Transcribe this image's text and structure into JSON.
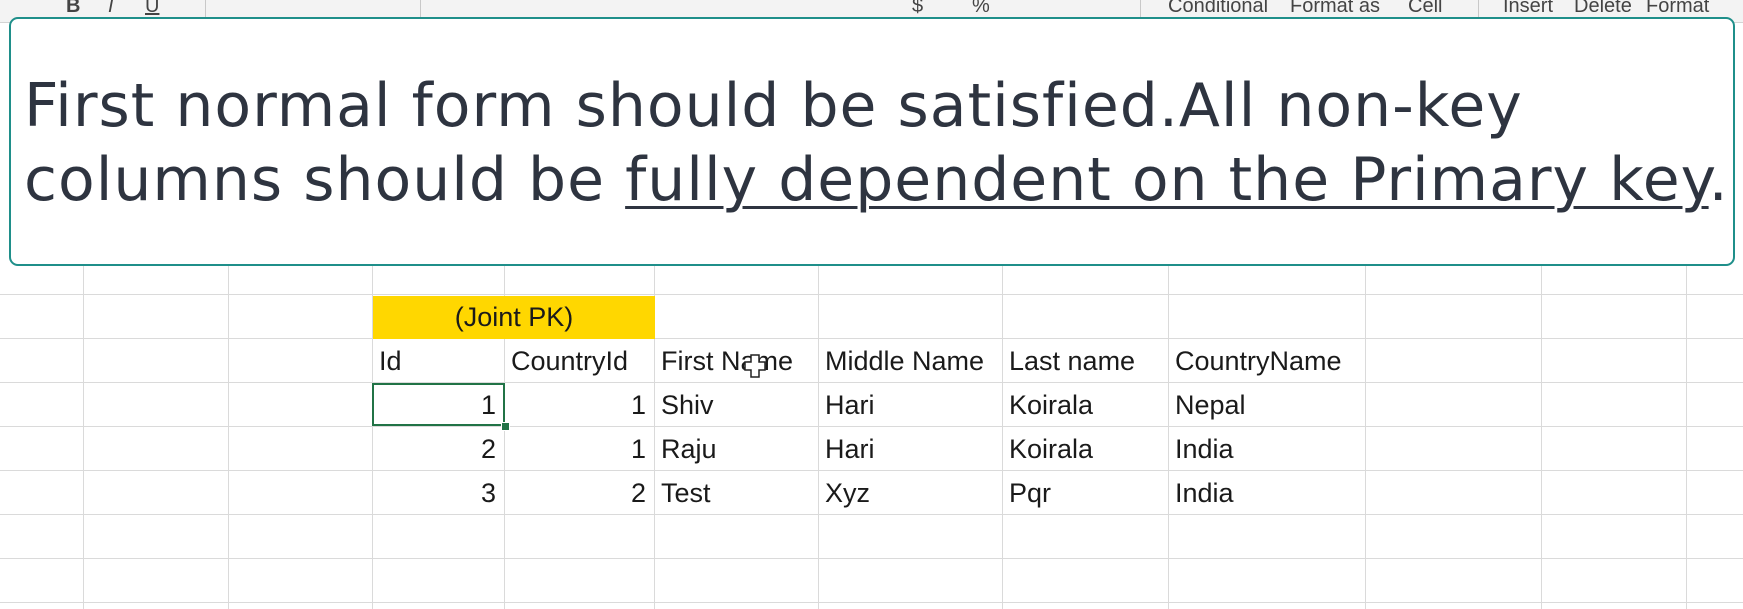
{
  "ribbon": {
    "items": [
      "B",
      "I",
      "U",
      "$",
      "%",
      "Conditional",
      "Format as",
      "Cell",
      "Insert",
      "Delete",
      "Format"
    ]
  },
  "banner": {
    "line1": "First normal form should be satisfied.All non-key",
    "line2_plain": "columns should be ",
    "line2_underlined": "fully dependent on the Primary key",
    "line2_end": "."
  },
  "sheet": {
    "joint_pk_label": "(Joint PK)",
    "headers": [
      "Id",
      "CountryId",
      "First Name",
      "Middle Name",
      "Last name",
      "CountryName"
    ],
    "rows": [
      {
        "id": "1",
        "country_id": "1",
        "first": "Shiv",
        "middle": "Hari",
        "last": "Koirala",
        "country": "Nepal"
      },
      {
        "id": "2",
        "country_id": "1",
        "first": "Raju",
        "middle": "Hari",
        "last": "Koirala",
        "country": "India"
      },
      {
        "id": "3",
        "country_id": "2",
        "first": "Test",
        "middle": "Xyz",
        "last": "Pqr",
        "country": "India"
      }
    ]
  },
  "colors": {
    "highlight": "#ffd700",
    "selection": "#217346",
    "banner_border": "#1f8f8a"
  }
}
